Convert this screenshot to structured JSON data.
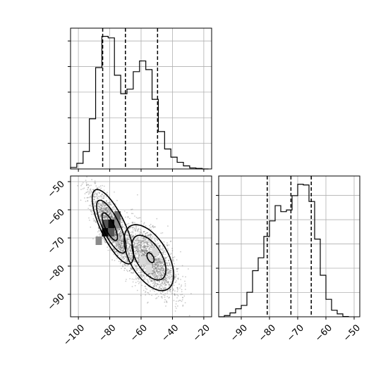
{
  "chart_data": [
    {
      "id": "top-left-histogram",
      "type": "histogram",
      "title": "",
      "xlabel": "",
      "ylabel": "",
      "xlim": [
        -105,
        -15
      ],
      "grid": true,
      "y_ticks_labeled": false,
      "x_ticks_labeled": false,
      "bin_edges": [
        -105,
        -101,
        -97,
        -93,
        -89,
        -85,
        -81,
        -77,
        -73,
        -69,
        -65,
        -61,
        -57,
        -53,
        -49,
        -45,
        -41,
        -37,
        -33,
        -29,
        -25,
        -21,
        -17
      ],
      "counts": [
        0.3,
        1.1,
        3.4,
        9.8,
        19.8,
        25.9,
        25.6,
        18.3,
        14.7,
        15.6,
        19.0,
        21.1,
        19.4,
        13.6,
        7.3,
        3.9,
        2.3,
        1.3,
        0.6,
        0.2,
        0.1,
        0
      ],
      "ymax": 27.5,
      "quantile_lines": [
        -84.5,
        -70.0,
        -49.5
      ]
    },
    {
      "id": "bottom-left-2d-density",
      "type": "scatter-contour",
      "title": "",
      "xlabel": "",
      "ylabel": "",
      "xlim": [
        -105,
        -15
      ],
      "ylim": [
        -98,
        -48
      ],
      "grid": true,
      "x_ticks": [
        -100,
        -80,
        -60,
        -40,
        -20
      ],
      "x_tick_labels": [
        "−100",
        "−80",
        "−60",
        "−40",
        "−20"
      ],
      "y_ticks": [
        -50,
        -60,
        -70,
        -80,
        -90
      ],
      "y_tick_labels": [
        "−50",
        "−60",
        "−70",
        "−80",
        "−90"
      ],
      "clusters": [
        {
          "center": [
            -79,
            -66
          ],
          "sd_major": 9.0,
          "sd_minor": 2.8,
          "angle_deg": -45,
          "n": 1700
        },
        {
          "center": [
            -54,
            -78
          ],
          "sd_major": 9.5,
          "sd_minor": 4.5,
          "angle_deg": -30,
          "n": 1900
        }
      ],
      "contours": [
        {
          "level": "outer",
          "center": [
            -78,
            -66
          ],
          "rx": 17.5,
          "ry": 6.5,
          "angle_deg": -45,
          "color": "#000000"
        },
        {
          "level": "middle",
          "center": [
            -79,
            -66
          ],
          "rx": 12.5,
          "ry": 4.5,
          "angle_deg": -45,
          "color": "#000000"
        },
        {
          "level": "inner",
          "center": [
            -80,
            -66
          ],
          "rx": 6.5,
          "ry": 2.4,
          "angle_deg": -45,
          "color": "#000000"
        },
        {
          "level": "outer",
          "center": [
            -55,
            -77
          ],
          "rx": 17.5,
          "ry": 9.0,
          "angle_deg": -30,
          "color": "#000000"
        },
        {
          "level": "middle",
          "center": [
            -55,
            -77
          ],
          "rx": 12.0,
          "ry": 6.0,
          "angle_deg": -30,
          "color": "#000000"
        },
        {
          "level": "inner",
          "center": [
            -54,
            -77
          ],
          "rx": 2.5,
          "ry": 1.4,
          "angle_deg": -30,
          "color": "#000000"
        }
      ],
      "density_cells": [
        {
          "x": -83,
          "y": -68,
          "shade": "#0d0d0d"
        },
        {
          "x": -79,
          "y": -65,
          "shade": "#0d0d0d"
        },
        {
          "x": -83,
          "y": -65,
          "shade": "#555555"
        },
        {
          "x": -79,
          "y": -68,
          "shade": "#555555"
        },
        {
          "x": -75,
          "y": -62,
          "shade": "#6b6b6b"
        },
        {
          "x": -87,
          "y": -71,
          "shade": "#8a8a8a"
        },
        {
          "x": -75,
          "y": -65,
          "shade": "#8a8a8a"
        },
        {
          "x": -55,
          "y": -78,
          "shade": "#cfcfcf"
        },
        {
          "x": -59,
          "y": -78,
          "shade": "#d8d8d8"
        },
        {
          "x": -51,
          "y": -75,
          "shade": "#d8d8d8"
        },
        {
          "x": -55,
          "y": -81,
          "shade": "#dedede"
        }
      ]
    },
    {
      "id": "bottom-right-histogram",
      "type": "histogram",
      "title": "",
      "xlabel": "",
      "ylabel": "",
      "xlim": [
        -98,
        -48
      ],
      "grid": true,
      "y_ticks_labeled": false,
      "x_ticks": [
        -90,
        -80,
        -70,
        -60,
        -50
      ],
      "x_tick_labels": [
        "−90",
        "−80",
        "−70",
        "−60",
        "−50"
      ],
      "bin_edges": [
        -98,
        -96,
        -94,
        -92,
        -90,
        -88,
        -86,
        -84,
        -82,
        -80,
        -78,
        -76,
        -74,
        -72,
        -70,
        -68,
        -66,
        -64,
        -62,
        -60,
        -58,
        -56,
        -54,
        -52
      ],
      "counts": [
        0,
        0.5,
        1.6,
        3.3,
        4.7,
        10.1,
        19.0,
        24.3,
        33.1,
        39.5,
        45.8,
        43.3,
        44.0,
        49.9,
        54.6,
        54.3,
        47.5,
        32.0,
        17.1,
        7.2,
        2.7,
        1.2,
        0.1
      ],
      "ymax": 58,
      "quantile_lines": [
        -80.8,
        -72.4,
        -65.2
      ]
    }
  ]
}
